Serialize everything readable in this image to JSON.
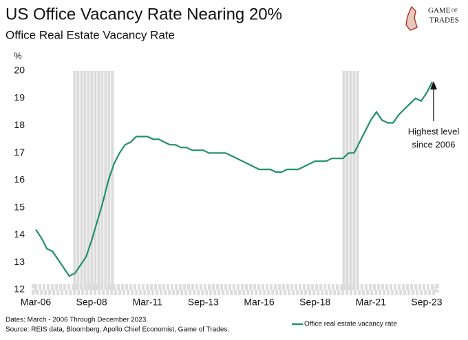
{
  "chart_data": {
    "type": "line",
    "title": "US Office Vacancy Rate Nearing 20%",
    "subtitle": "Office Real Estate Vacancy Rate",
    "y_unit": "%",
    "logo": [
      "GAME",
      "OF",
      "TRADES"
    ],
    "categories": [
      "Mar-06",
      null,
      null,
      null,
      null,
      null,
      null,
      null,
      null,
      null,
      "Sep-08",
      null,
      null,
      null,
      null,
      null,
      null,
      null,
      null,
      null,
      "Mar-11",
      null,
      null,
      null,
      null,
      null,
      null,
      null,
      null,
      null,
      "Sep-13",
      null,
      null,
      null,
      null,
      null,
      null,
      null,
      null,
      null,
      "Mar-16",
      null,
      null,
      null,
      null,
      null,
      null,
      null,
      null,
      null,
      "Sep-18",
      null,
      null,
      null,
      null,
      null,
      null,
      null,
      null,
      null,
      "Mar-21",
      null,
      null,
      null,
      null,
      null,
      null,
      null,
      null,
      null,
      "Sep-23",
      null
    ],
    "series": [
      {
        "name": "Office real estate vacancy rate",
        "color": "#1f8f6b",
        "values": [
          14.2,
          13.9,
          13.5,
          13.4,
          13.1,
          12.8,
          12.5,
          12.6,
          12.9,
          13.2,
          13.8,
          14.5,
          15.2,
          16.0,
          16.6,
          17.0,
          17.3,
          17.4,
          17.6,
          17.6,
          17.6,
          17.5,
          17.5,
          17.4,
          17.3,
          17.3,
          17.2,
          17.2,
          17.1,
          17.1,
          17.1,
          17.0,
          17.0,
          17.0,
          17.0,
          16.9,
          16.8,
          16.7,
          16.6,
          16.5,
          16.4,
          16.4,
          16.4,
          16.3,
          16.3,
          16.4,
          16.4,
          16.4,
          16.5,
          16.6,
          16.7,
          16.7,
          16.7,
          16.8,
          16.8,
          16.8,
          17.0,
          17.0,
          17.4,
          17.8,
          18.2,
          18.5,
          18.2,
          18.1,
          18.1,
          18.4,
          18.6,
          18.8,
          19.0,
          18.9,
          19.2,
          19.6
        ]
      }
    ],
    "shaded": [
      [
        6.7,
        13.6
      ],
      [
        54.9,
        57.5
      ]
    ],
    "shade_color": "#dcdcdc",
    "ylim": [
      12,
      20
    ],
    "yticks": [
      12,
      13,
      14,
      15,
      16,
      17,
      18,
      19,
      20
    ],
    "annotation": [
      "Highest level",
      "since 2006"
    ],
    "footnotes": [
      "Dates: March - 2006 Through December 2023.",
      "Source: REIS data, Bloomberg, Apollo Chief Economist, Game of Trades."
    ]
  }
}
